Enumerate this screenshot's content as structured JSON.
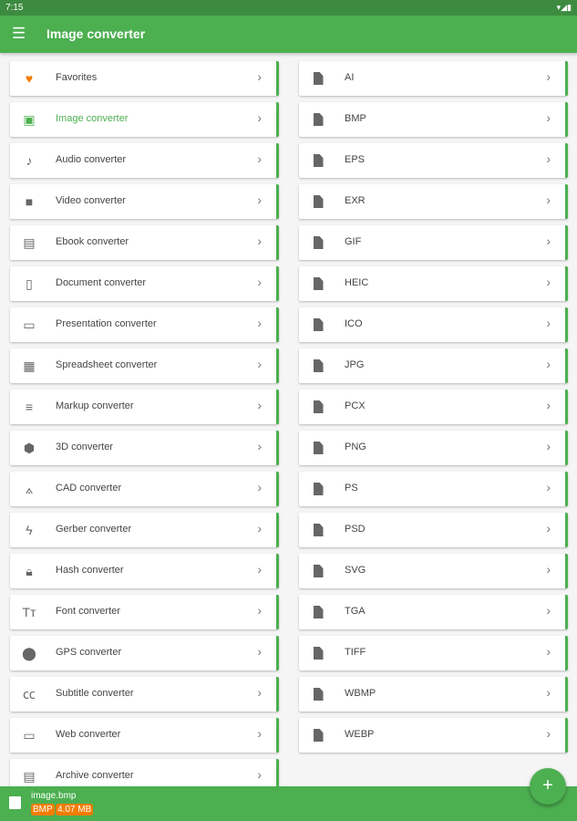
{
  "status": {
    "time": "7:15",
    "icons": "▾◢▮"
  },
  "appbar": {
    "title": "Image converter",
    "menu_icon": "☰"
  },
  "categories": [
    {
      "label": "Favorites",
      "icon": "heart-icon",
      "glyph": "♥"
    },
    {
      "label": "Image converter",
      "icon": "image-icon",
      "glyph": "▣",
      "active": true
    },
    {
      "label": "Audio converter",
      "icon": "music-note-icon",
      "glyph": "♪"
    },
    {
      "label": "Video converter",
      "icon": "video-camera-icon",
      "glyph": "■"
    },
    {
      "label": "Ebook converter",
      "icon": "book-icon",
      "glyph": "▤"
    },
    {
      "label": "Document converter",
      "icon": "document-icon",
      "glyph": "▯"
    },
    {
      "label": "Presentation converter",
      "icon": "monitor-icon",
      "glyph": "▭"
    },
    {
      "label": "Spreadsheet converter",
      "icon": "table-icon",
      "glyph": "▦"
    },
    {
      "label": "Markup converter",
      "icon": "lines-icon",
      "glyph": "≡"
    },
    {
      "label": "3D converter",
      "icon": "cubes-icon",
      "glyph": "⬢"
    },
    {
      "label": "CAD converter",
      "icon": "compass-icon",
      "glyph": "⟑"
    },
    {
      "label": "Gerber converter",
      "icon": "bolt-icon",
      "glyph": "ϟ"
    },
    {
      "label": "Hash converter",
      "icon": "lock-icon",
      "glyph": "🔒︎"
    },
    {
      "label": "Font converter",
      "icon": "font-icon",
      "glyph": "Tт"
    },
    {
      "label": "GPS converter",
      "icon": "location-pin-icon",
      "glyph": "⬤"
    },
    {
      "label": "Subtitle converter",
      "icon": "closed-caption-icon",
      "glyph": "㏄"
    },
    {
      "label": "Web converter",
      "icon": "browser-icon",
      "glyph": "▭"
    },
    {
      "label": "Archive converter",
      "icon": "archive-icon",
      "glyph": "▤"
    }
  ],
  "formats": [
    "AI",
    "BMP",
    "EPS",
    "EXR",
    "GIF",
    "HEIC",
    "ICO",
    "JPG",
    "PCX",
    "PNG",
    "PS",
    "PSD",
    "SVG",
    "TGA",
    "TIFF",
    "WBMP",
    "WEBP"
  ],
  "chevron": "›",
  "bottom": {
    "filename": "image.bmp",
    "format": "BMP",
    "size": "4.07 MB"
  },
  "fab": "+",
  "colors": {
    "primary": "#4caf50",
    "status": "#3d8b40",
    "accent": "#f57c00"
  }
}
